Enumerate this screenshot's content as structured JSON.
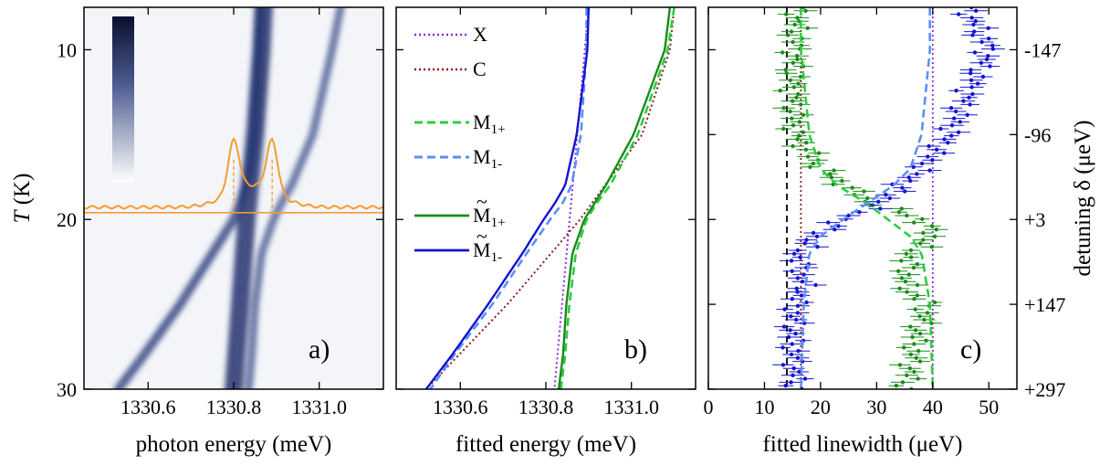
{
  "chart_data": [
    {
      "panel": "a)",
      "type": "heatmap",
      "xlabel": "photon energy (meV)",
      "ylabel": "T (K)",
      "xlim": [
        1330.45,
        1331.15
      ],
      "ylim": [
        30,
        7.5
      ],
      "xticks": [
        1330.6,
        1330.8,
        1331.0
      ],
      "yticks": [
        10,
        20,
        30
      ],
      "colorscale": [
        "#ffffff",
        "#0a0f2e"
      ],
      "branches": [
        {
          "name": "lower",
          "T": [
            7.5,
            10,
            15,
            17,
            19,
            20,
            22,
            25,
            28,
            30
          ],
          "E": [
            1330.862,
            1330.858,
            1330.848,
            1330.838,
            1330.815,
            1330.8,
            1330.75,
            1330.675,
            1330.59,
            1330.53
          ]
        },
        {
          "name": "upper",
          "T": [
            7.5,
            10,
            15,
            18,
            19,
            20,
            22,
            25,
            28,
            30
          ],
          "E": [
            1331.05,
            1331.03,
            1330.985,
            1330.935,
            1330.912,
            1330.893,
            1330.865,
            1330.85,
            1330.842,
            1330.835
          ]
        },
        {
          "name": "central",
          "T": [
            7.5,
            10,
            15,
            20,
            25,
            30
          ],
          "E": [
            1330.87,
            1330.865,
            1330.85,
            1330.83,
            1330.815,
            1330.8
          ]
        }
      ],
      "spectrum_T": 19.6,
      "spectrum_peaks": [
        1330.8,
        1330.89
      ]
    },
    {
      "panel": "b)",
      "type": "line",
      "xlabel": "fitted energy (meV)",
      "xlim": [
        1330.45,
        1331.15
      ],
      "ylim": [
        30,
        7.5
      ],
      "xticks": [
        1330.6,
        1330.8,
        1331.0
      ],
      "legend": [
        "X",
        "C",
        "M1+",
        "M1-",
        "M~1+",
        "M~1-"
      ],
      "series": [
        {
          "name": "X",
          "color": "#8a2be2",
          "style": "dot",
          "T": [
            7.5,
            30
          ],
          "E": [
            1330.9,
            1330.82
          ]
        },
        {
          "name": "C",
          "color": "#8b1a1a",
          "style": "dot",
          "T": [
            7.5,
            10,
            15,
            20,
            25,
            30
          ],
          "E": [
            1331.1,
            1331.09,
            1331.025,
            1330.88,
            1330.71,
            1330.52
          ]
        },
        {
          "name": "M1+",
          "color": "#2ecc40",
          "style": "dash",
          "T": [
            7.5,
            10,
            15,
            18,
            19,
            20,
            22,
            25,
            28,
            30
          ],
          "E": [
            1331.1,
            1331.085,
            1331.015,
            1330.95,
            1330.92,
            1330.895,
            1330.87,
            1330.855,
            1330.845,
            1330.835
          ]
        },
        {
          "name": "M1-",
          "color": "#5b8ff9",
          "style": "dash",
          "T": [
            7.5,
            10,
            15,
            18,
            19,
            20,
            22,
            25,
            28,
            30
          ],
          "E": [
            1330.895,
            1330.895,
            1330.882,
            1330.86,
            1330.84,
            1330.81,
            1330.755,
            1330.675,
            1330.585,
            1330.53
          ]
        },
        {
          "name": "M~1+",
          "color": "#1a8c1a",
          "style": "solid",
          "T": [
            7.5,
            10,
            15,
            18,
            19,
            20,
            22,
            25,
            28,
            30
          ],
          "E": [
            1331.09,
            1331.078,
            1331.005,
            1330.94,
            1330.915,
            1330.89,
            1330.862,
            1330.848,
            1330.84,
            1330.83
          ]
        },
        {
          "name": "M~1-",
          "color": "#1414d2",
          "style": "solid",
          "T": [
            7.5,
            10,
            15,
            18,
            19,
            20,
            22,
            25,
            28,
            30
          ],
          "E": [
            1330.9,
            1330.897,
            1330.872,
            1330.845,
            1330.822,
            1330.795,
            1330.745,
            1330.665,
            1330.58,
            1330.52
          ]
        }
      ]
    },
    {
      "panel": "c)",
      "type": "scatter",
      "xlabel": "fitted linewidth (μeV)",
      "y2label": "detuning δ (μeV)",
      "xlim": [
        0,
        55
      ],
      "ylim": [
        30,
        7.5
      ],
      "xticks": [
        0,
        10,
        20,
        30,
        40,
        50
      ],
      "right_tick_T": [
        10,
        15,
        20,
        25,
        30
      ],
      "right_ticks": [
        "-147",
        "-96",
        "+3",
        "+147",
        "+297"
      ],
      "vlines": [
        {
          "x": 14,
          "color": "#000000",
          "style": "dash"
        },
        {
          "x": 16.5,
          "color": "#8b1a1a",
          "style": "dot"
        },
        {
          "x": 40,
          "color": "#8a2be2",
          "style": "dot"
        }
      ],
      "series": [
        {
          "name": "M~1+",
          "color": "#1a8c1a",
          "T": [
            7.5,
            10,
            12,
            15,
            17,
            19,
            20,
            21,
            22,
            24,
            25,
            27,
            29,
            30
          ],
          "width": [
            16,
            15.5,
            15,
            15.5,
            20,
            29,
            38,
            40,
            36,
            35,
            39,
            37,
            36,
            35
          ]
        },
        {
          "name": "M~1-",
          "color": "#1414d2",
          "T": [
            7.5,
            10,
            12,
            15,
            17,
            19,
            20,
            21,
            22,
            24,
            25,
            27,
            29,
            30
          ],
          "width": [
            46,
            50,
            47,
            43,
            38,
            31,
            24,
            19,
            16,
            17,
            15.5,
            15,
            15.5,
            15.5
          ]
        },
        {
          "name": "M1+",
          "color": "#2ecc40",
          "style": "dash",
          "T": [
            7.5,
            10,
            15,
            17,
            18,
            19,
            20,
            21,
            22,
            25,
            30
          ],
          "width": [
            16.5,
            16.5,
            18,
            20,
            23,
            28,
            32,
            36,
            38,
            39.5,
            40
          ]
        },
        {
          "name": "M1-",
          "color": "#5b8ff9",
          "style": "dash",
          "T": [
            7.5,
            10,
            15,
            17,
            18,
            19,
            20,
            21,
            22,
            25,
            30
          ],
          "width": [
            39.5,
            39.5,
            38,
            36,
            33,
            28.5,
            24,
            20,
            18,
            17,
            16.5
          ]
        }
      ]
    }
  ]
}
